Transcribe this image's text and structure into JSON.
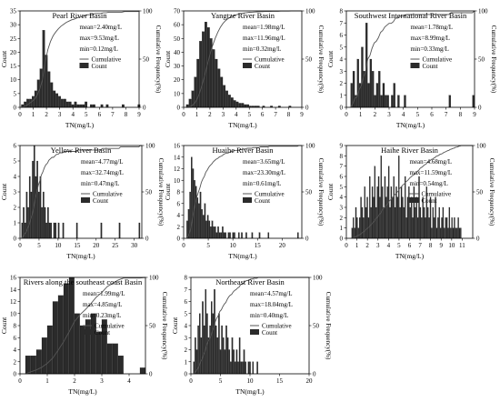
{
  "figure": {
    "label_style": {
      "bar_fill": "#2b2b2b",
      "curve_color": "#555555",
      "axis_color": "#000000"
    }
  },
  "chart_data": [
    {
      "type": "bar",
      "title": "Pearl River Basin",
      "xlabel": "TN(mg/L)",
      "ylabel": "Count",
      "y2label": "Cumulative Frequency(%)",
      "xlim": [
        0,
        9
      ],
      "ylim": [
        0,
        35
      ],
      "y2lim": [
        0,
        100
      ],
      "xticks": [
        0,
        1,
        2,
        3,
        4,
        5,
        6,
        7,
        8,
        9
      ],
      "yticks": [
        0,
        5,
        10,
        15,
        20,
        25,
        30,
        35
      ],
      "y2ticks": [
        0,
        50,
        100
      ],
      "stats": [
        "mean=2.40mg/L",
        "max=9.53mg/L",
        "min=0.12mg/L"
      ],
      "legend": [
        "Cumulative",
        "Count"
      ],
      "bin_width": 0.2,
      "bins_start": 0.1,
      "values": [
        1,
        2,
        3,
        3,
        4,
        6,
        10,
        14,
        28,
        19,
        13,
        9,
        6,
        5,
        4,
        3,
        3,
        2,
        2,
        1,
        2,
        1,
        1,
        1,
        2,
        0,
        1,
        1,
        0,
        0,
        1,
        0,
        1,
        0,
        0,
        0,
        0,
        0,
        1,
        0,
        0,
        0,
        0,
        0,
        1
      ]
    },
    {
      "type": "bar",
      "title": "Yangtze River Basin",
      "xlabel": "TN(mg/L)",
      "ylabel": "Count",
      "y2label": "Cumulative Frequency(%)",
      "xlim": [
        0,
        9
      ],
      "ylim": [
        0,
        70
      ],
      "y2lim": [
        0,
        100
      ],
      "xticks": [
        0,
        1,
        2,
        3,
        4,
        5,
        6,
        7,
        8,
        9
      ],
      "yticks": [
        0,
        10,
        20,
        30,
        40,
        50,
        60,
        70
      ],
      "y2ticks": [
        0,
        50,
        100
      ],
      "stats": [
        "mean=1.98mg/L",
        "max=11.96mg/L",
        "min=0.32mg/L"
      ],
      "legend": [
        "Cumulative",
        "Count"
      ],
      "bin_width": 0.2,
      "bins_start": 0.2,
      "values": [
        2,
        6,
        12,
        22,
        35,
        48,
        55,
        62,
        58,
        50,
        42,
        35,
        28,
        22,
        16,
        12,
        9,
        7,
        5,
        4,
        3,
        3,
        2,
        2,
        1,
        1,
        1,
        1,
        0,
        1,
        0,
        0,
        1,
        0,
        0,
        1,
        0,
        0,
        0,
        1
      ]
    },
    {
      "type": "bar",
      "title": "Southwest International River Basin",
      "xlabel": "TN(mg/L)",
      "ylabel": "Count",
      "y2label": "Cumulative Frequency(%)",
      "xlim": [
        0,
        9
      ],
      "ylim": [
        0,
        8
      ],
      "y2lim": [
        0,
        100
      ],
      "xticks": [
        0,
        1,
        2,
        3,
        4,
        5,
        6,
        7,
        8,
        9
      ],
      "yticks": [
        0,
        1,
        2,
        3,
        4,
        5,
        6,
        7,
        8
      ],
      "y2ticks": [
        0,
        50,
        100
      ],
      "stats": [
        "mean=1.78mg/L",
        "max=8.99mg/L",
        "min=0.33mg/L"
      ],
      "legend": [
        "Cumulative",
        "Count"
      ],
      "bin_width": 0.15,
      "bins_start": 0.3,
      "values": [
        2,
        3,
        1,
        4,
        2,
        5,
        3,
        7,
        2,
        4,
        3,
        1,
        2,
        3,
        1,
        2,
        1,
        1,
        0,
        1,
        2,
        0,
        1,
        0,
        0,
        1,
        0,
        0,
        0,
        0,
        0,
        0,
        0,
        0,
        0,
        0,
        0,
        0,
        0,
        0,
        0,
        0,
        0,
        0,
        0,
        0,
        1,
        0,
        0,
        0,
        0,
        0,
        0,
        0,
        0,
        0,
        0,
        1
      ]
    },
    {
      "type": "bar",
      "title": "Yellow River Basin",
      "xlabel": "TN(mg/L)",
      "ylabel": "Count",
      "y2label": "Cumulative Frequency(%)",
      "xlim": [
        0,
        32
      ],
      "ylim": [
        0,
        6
      ],
      "y2lim": [
        0,
        100
      ],
      "xticks": [
        0,
        5,
        10,
        15,
        20,
        25,
        30
      ],
      "yticks": [
        0,
        1,
        2,
        3,
        4,
        5,
        6
      ],
      "y2ticks": [
        0,
        50,
        100
      ],
      "stats": [
        "mean=4.77mg/L",
        "max=32.74mg/L",
        "min=0.47mg/L"
      ],
      "legend": [
        "Cumulative",
        "Count"
      ],
      "bin_width": 0.4,
      "bins_start": 0.4,
      "values": [
        1,
        2,
        1,
        3,
        2,
        4,
        3,
        5,
        6,
        4,
        5,
        3,
        4,
        2,
        3,
        2,
        1,
        2,
        1,
        1,
        0,
        1,
        1,
        0,
        1,
        0,
        0,
        1,
        0,
        0,
        0,
        0,
        0,
        0,
        0,
        0,
        1,
        0,
        0,
        0,
        0,
        0,
        0,
        0,
        0,
        0,
        0,
        0,
        0,
        0,
        0,
        0,
        1,
        0,
        0,
        0,
        0,
        0,
        0,
        0,
        0,
        0,
        0,
        0,
        1,
        0,
        0,
        0,
        0,
        0,
        0,
        0,
        0,
        0,
        0,
        0,
        0,
        1
      ]
    },
    {
      "type": "bar",
      "title": "Huaihe River Basin",
      "xlabel": "TN(mg/L)",
      "ylabel": "Count",
      "y2label": "Cumulative Frequency(%)",
      "xlim": [
        0,
        24
      ],
      "ylim": [
        0,
        16
      ],
      "y2lim": [
        0,
        100
      ],
      "xticks": [
        0,
        5,
        10,
        15,
        20
      ],
      "yticks": [
        0,
        2,
        4,
        6,
        8,
        10,
        12,
        14,
        16
      ],
      "y2ticks": [
        0,
        50,
        100
      ],
      "stats": [
        "mean=3.65mg/L",
        "max=23.30mg/L",
        "min=0.61mg/L"
      ],
      "legend": [
        "Cumulative",
        "Count"
      ],
      "bin_width": 0.3,
      "bins_start": 0.6,
      "values": [
        3,
        5,
        8,
        14,
        12,
        10,
        9,
        7,
        6,
        8,
        5,
        4,
        6,
        3,
        4,
        3,
        2,
        3,
        2,
        2,
        1,
        2,
        1,
        1,
        2,
        1,
        1,
        0,
        1,
        1,
        0,
        1,
        1,
        0,
        0,
        1,
        0,
        1,
        0,
        0,
        1,
        0,
        0,
        0,
        1,
        0,
        0,
        0,
        0,
        1,
        0,
        0,
        0,
        0,
        0,
        1,
        0,
        0,
        0,
        0,
        0,
        0,
        0,
        0,
        0,
        0,
        0,
        0,
        0,
        0,
        0,
        0,
        0,
        0,
        0,
        1
      ]
    },
    {
      "type": "bar",
      "title": "Haihe River Basin",
      "xlabel": "TN(mg/L)",
      "ylabel": "Count",
      "y2label": "Cumulative Frequency(%)",
      "xlim": [
        0,
        12
      ],
      "ylim": [
        0,
        9
      ],
      "y2lim": [
        0,
        100
      ],
      "xticks": [
        0,
        1,
        2,
        3,
        4,
        5,
        6,
        7,
        8,
        9,
        10,
        11
      ],
      "yticks": [
        0,
        1,
        2,
        3,
        4,
        5,
        6,
        7,
        8,
        9
      ],
      "y2ticks": [
        0,
        50,
        100
      ],
      "stats": [
        "mean=4.68mg/L",
        "max=11.59mg/L",
        "min=0.54mg/L"
      ],
      "legend": [
        "Cumulative",
        "Count"
      ],
      "bin_width": 0.12,
      "bins_start": 0.5,
      "values": [
        1,
        2,
        1,
        3,
        2,
        1,
        2,
        4,
        3,
        2,
        5,
        3,
        4,
        2,
        6,
        3,
        5,
        4,
        7,
        3,
        5,
        6,
        4,
        8,
        5,
        3,
        6,
        4,
        5,
        7,
        3,
        5,
        4,
        6,
        3,
        5,
        4,
        8,
        3,
        5,
        4,
        3,
        6,
        2,
        4,
        5,
        3,
        4,
        2,
        5,
        3,
        4,
        2,
        6,
        3,
        2,
        4,
        3,
        2,
        5,
        3,
        2,
        4,
        1,
        3,
        2,
        4,
        1,
        2,
        3,
        1,
        2,
        3,
        1,
        2,
        2,
        1,
        3,
        1,
        2,
        1,
        2,
        1,
        1,
        2,
        1,
        1
      ]
    },
    {
      "type": "bar",
      "title": "Rivers along the southeast coast Basin",
      "xlabel": "TN(mg/L)",
      "ylabel": "Count",
      "y2label": "Cumulative Frequency(%)",
      "xlim": [
        0,
        4.6
      ],
      "ylim": [
        0,
        16
      ],
      "y2lim": [
        0,
        100
      ],
      "xticks": [
        0,
        1,
        2,
        3,
        4
      ],
      "yticks": [
        0,
        2,
        4,
        6,
        8,
        10,
        12,
        14,
        16
      ],
      "y2ticks": [
        0,
        50,
        100
      ],
      "stats": [
        "mean=1.99mg/L",
        "max=4.85mg/L",
        "min=0.23mg/L"
      ],
      "legend": [
        "Cumulative",
        "Count"
      ],
      "bin_width": 0.2,
      "bins_start": 0.2,
      "values": [
        3,
        3,
        4,
        6,
        8,
        12,
        13,
        15,
        16,
        10,
        8,
        9,
        10,
        7,
        9,
        5,
        5,
        3,
        0,
        0,
        0,
        1
      ]
    },
    {
      "type": "bar",
      "title": "Northeast River Basin",
      "xlabel": "TN(mg/L)",
      "ylabel": "Count",
      "y2label": "Cumulative Frequency(%)",
      "xlim": [
        0,
        20
      ],
      "ylim": [
        0,
        8
      ],
      "y2lim": [
        0,
        100
      ],
      "xticks": [
        0,
        5,
        10,
        15,
        20
      ],
      "yticks": [
        0,
        1,
        2,
        3,
        4,
        5,
        6,
        7,
        8
      ],
      "y2ticks": [
        0,
        50,
        100
      ],
      "stats": [
        "mean=4.57mg/L",
        "max=18.04mg/L",
        "min=0.40mg/L"
      ],
      "legend": [
        "Cumulative",
        "Count"
      ],
      "bin_width": 0.25,
      "bins_start": 0.4,
      "values": [
        1,
        3,
        2,
        4,
        5,
        3,
        6,
        4,
        7,
        5,
        3,
        4,
        6,
        5,
        7,
        4,
        3,
        5,
        2,
        4,
        3,
        2,
        4,
        3,
        2,
        1,
        3,
        2,
        1,
        2,
        1,
        3,
        1,
        1,
        2,
        1,
        0,
        1,
        1,
        0,
        1,
        0,
        0,
        1
      ]
    }
  ]
}
